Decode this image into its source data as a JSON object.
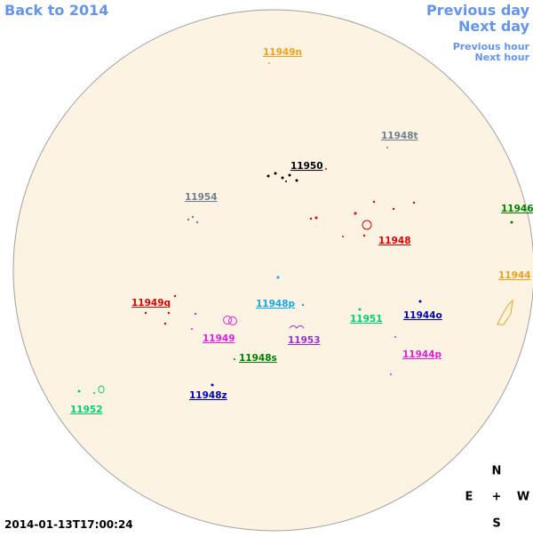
{
  "navigation": {
    "back": "Back to 2014",
    "previous_day": "Previous day",
    "next_day": "Next day",
    "previous_hour": "Previous hour",
    "next_hour": "Next hour"
  },
  "regions": [
    {
      "label": "11949n",
      "color": "#f0a020"
    },
    {
      "label": "11948t",
      "color": "#708090"
    },
    {
      "label": "11950",
      "color": "#000000"
    },
    {
      "label": "11954",
      "color": "#708090"
    },
    {
      "label": "11946",
      "color": "#008000"
    },
    {
      "label": "11948",
      "color": "#e00000"
    },
    {
      "label": "11944",
      "color": "#f0a020"
    },
    {
      "label": "11949q",
      "color": "#e00000"
    },
    {
      "label": "11948p",
      "color": "#10a8f0"
    },
    {
      "label": "11951",
      "color": "#00d070"
    },
    {
      "label": "11944o",
      "color": "#0000c0"
    },
    {
      "label": "11949",
      "color": "#e020e0"
    },
    {
      "label": "11953",
      "color": "#9a30d0"
    },
    {
      "label": "11944p",
      "color": "#e020e0"
    },
    {
      "label": "11948s",
      "color": "#008000"
    },
    {
      "label": "11948z",
      "color": "#0000b0"
    },
    {
      "label": "11952",
      "color": "#00d070"
    }
  ],
  "compass": {
    "north": "N",
    "east": "E",
    "center": "+",
    "west": "W",
    "south": "S"
  },
  "timestamp": "2014-01-13T17:00:24"
}
